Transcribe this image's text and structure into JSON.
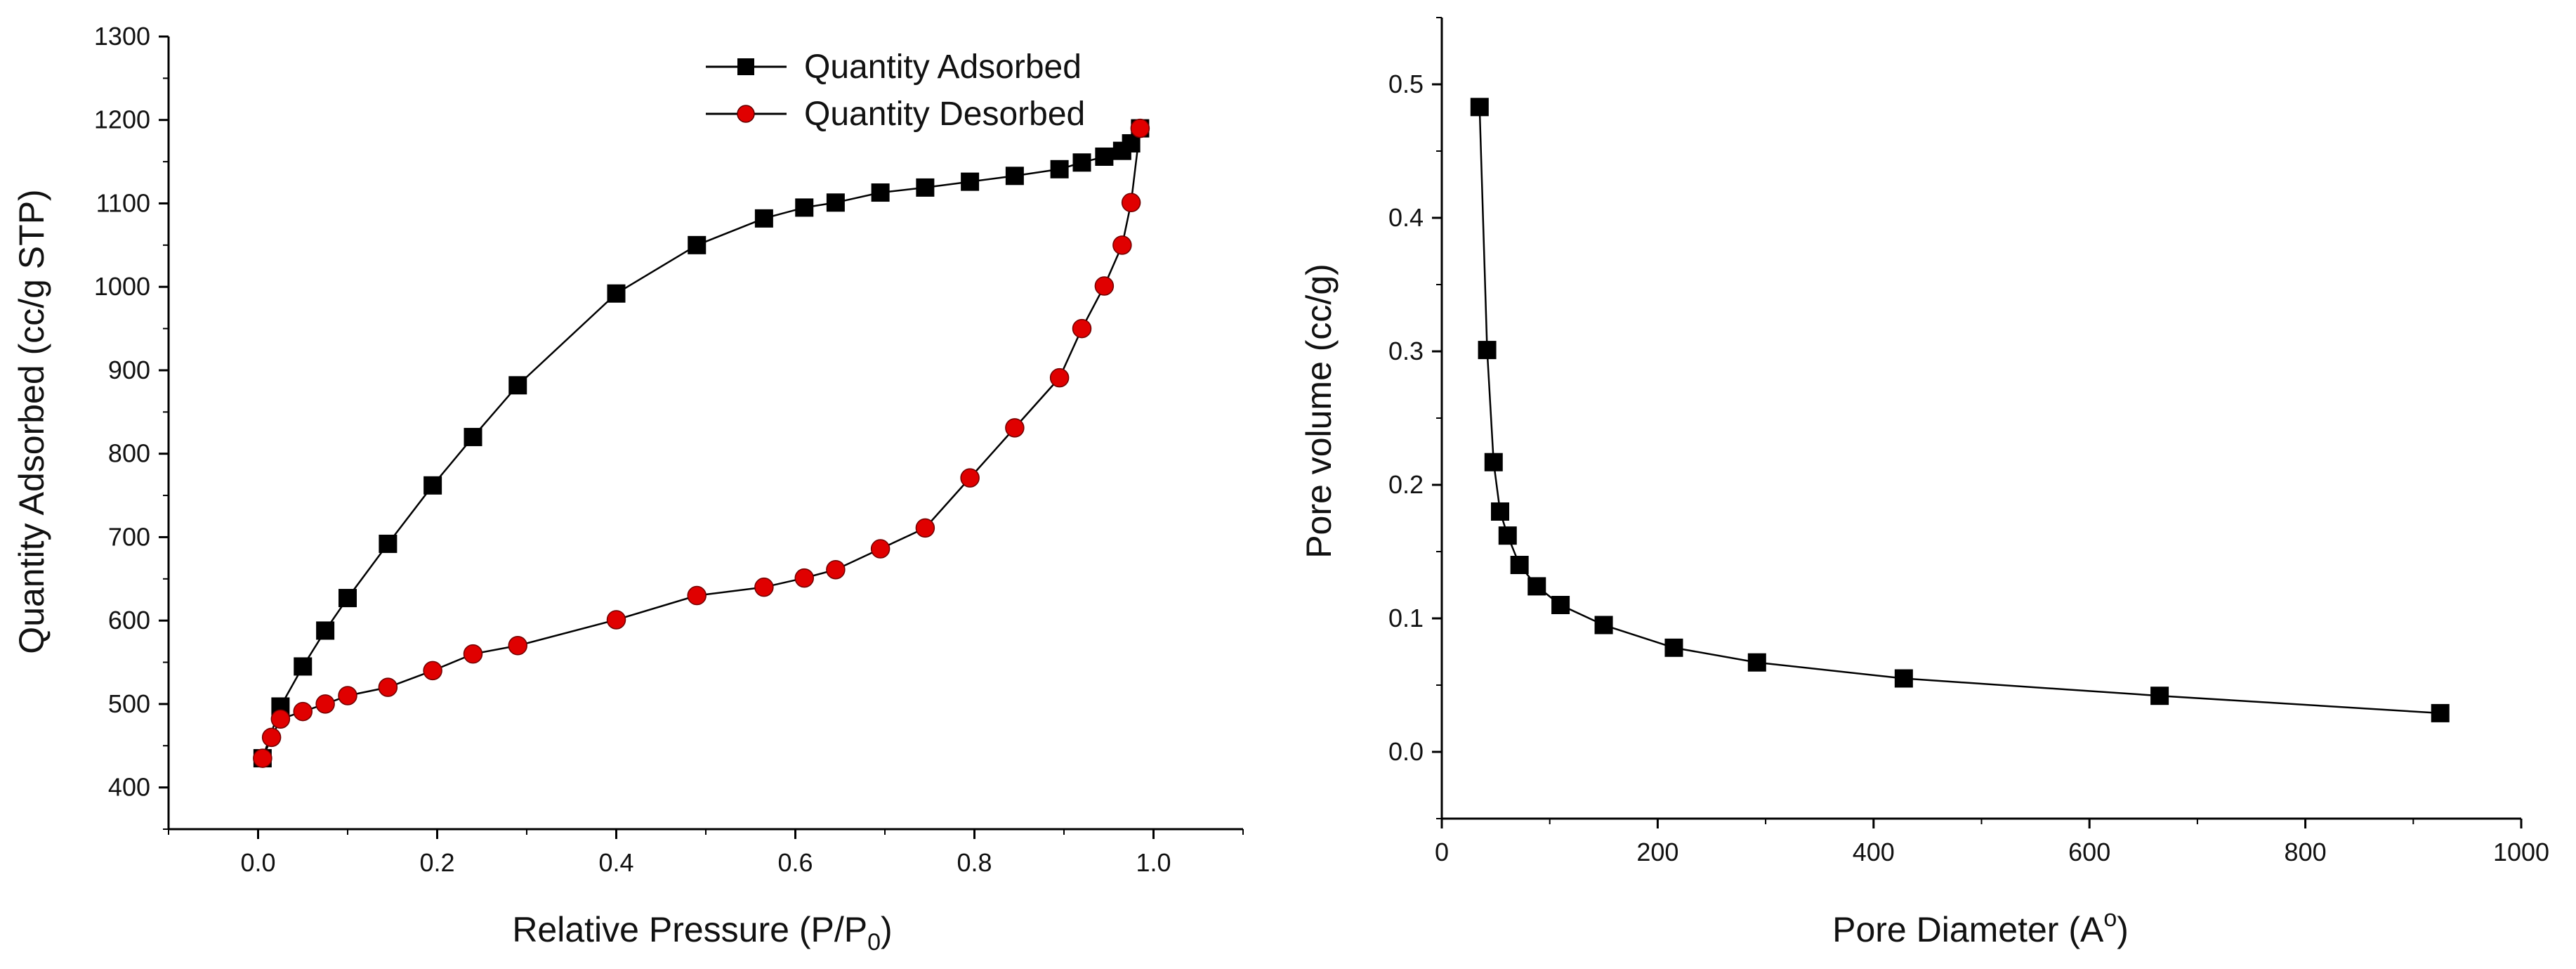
{
  "chart_data": [
    {
      "type": "line",
      "title": "",
      "xlabel": "Relative Pressure (P/P",
      "xlabel_sub": "0",
      "xlabel_end": ")",
      "ylabel": "Quantity Adsorbed (cc/g STP)",
      "xlim": [
        -0.1,
        1.1
      ],
      "ylim": [
        350,
        1300
      ],
      "xticks": [
        0.0,
        0.2,
        0.4,
        0.6,
        0.8,
        1.0
      ],
      "xtick_labels": [
        "0.0",
        "0.2",
        "0.4",
        "0.6",
        "0.8",
        "1.0"
      ],
      "yticks": [
        400,
        500,
        600,
        700,
        800,
        900,
        1000,
        1100,
        1200,
        1300
      ],
      "ytick_labels": [
        "400",
        "500",
        "600",
        "700",
        "800",
        "900",
        "1000",
        "1100",
        "1200",
        "1300"
      ],
      "legend_position": "top-right",
      "series": [
        {
          "name": "Quantity Adsorbed",
          "marker": "square",
          "color": "#000000",
          "marker_color": "#000000",
          "x": [
            0.005,
            0.025,
            0.05,
            0.075,
            0.1,
            0.145,
            0.195,
            0.24,
            0.29,
            0.4,
            0.49,
            0.565,
            0.61,
            0.645,
            0.695,
            0.745,
            0.795,
            0.845,
            0.895,
            0.92,
            0.945,
            0.965,
            0.975,
            0.985
          ],
          "y": [
            435,
            497,
            545,
            588,
            627,
            692,
            762,
            820,
            882,
            992,
            1050,
            1082,
            1095,
            1101,
            1113,
            1119,
            1126,
            1133,
            1141,
            1149,
            1156,
            1163,
            1172,
            1190
          ]
        },
        {
          "name": "Quantity Desorbed",
          "marker": "circle",
          "color": "#000000",
          "marker_color": "#e00000",
          "x": [
            0.005,
            0.015,
            0.025,
            0.05,
            0.075,
            0.1,
            0.145,
            0.195,
            0.24,
            0.29,
            0.4,
            0.49,
            0.565,
            0.61,
            0.645,
            0.695,
            0.745,
            0.795,
            0.845,
            0.895,
            0.92,
            0.945,
            0.965,
            0.975,
            0.985
          ],
          "y": [
            435,
            460,
            482,
            491,
            500,
            510,
            520,
            540,
            560,
            570,
            601,
            630,
            640,
            651,
            661,
            686,
            711,
            771,
            831,
            891,
            950,
            1001,
            1050,
            1101,
            1190
          ]
        }
      ]
    },
    {
      "type": "line",
      "title": "",
      "xlabel": "Pore Diameter (A",
      "xlabel_sup": "o",
      "xlabel_end": ")",
      "ylabel": "Pore volume (cc/g)",
      "xlim": [
        0,
        1000
      ],
      "ylim": [
        -0.05,
        0.55
      ],
      "xticks": [
        0,
        200,
        400,
        600,
        800,
        1000
      ],
      "xtick_labels": [
        "0",
        "200",
        "400",
        "600",
        "800",
        "1000"
      ],
      "yticks": [
        0.0,
        0.1,
        0.2,
        0.3,
        0.4,
        0.5
      ],
      "ytick_labels": [
        "0.0",
        "0.1",
        "0.2",
        "0.3",
        "0.4",
        "0.5"
      ],
      "series": [
        {
          "name": "Pore volume",
          "marker": "square",
          "color": "#000000",
          "marker_color": "#000000",
          "x": [
            35,
            42,
            48,
            54,
            61,
            72,
            88,
            110,
            150,
            215,
            292,
            428,
            665,
            925
          ],
          "y": [
            0.483,
            0.301,
            0.217,
            0.18,
            0.162,
            0.14,
            0.124,
            0.11,
            0.095,
            0.078,
            0.067,
            0.055,
            0.042,
            0.029
          ]
        }
      ]
    }
  ]
}
